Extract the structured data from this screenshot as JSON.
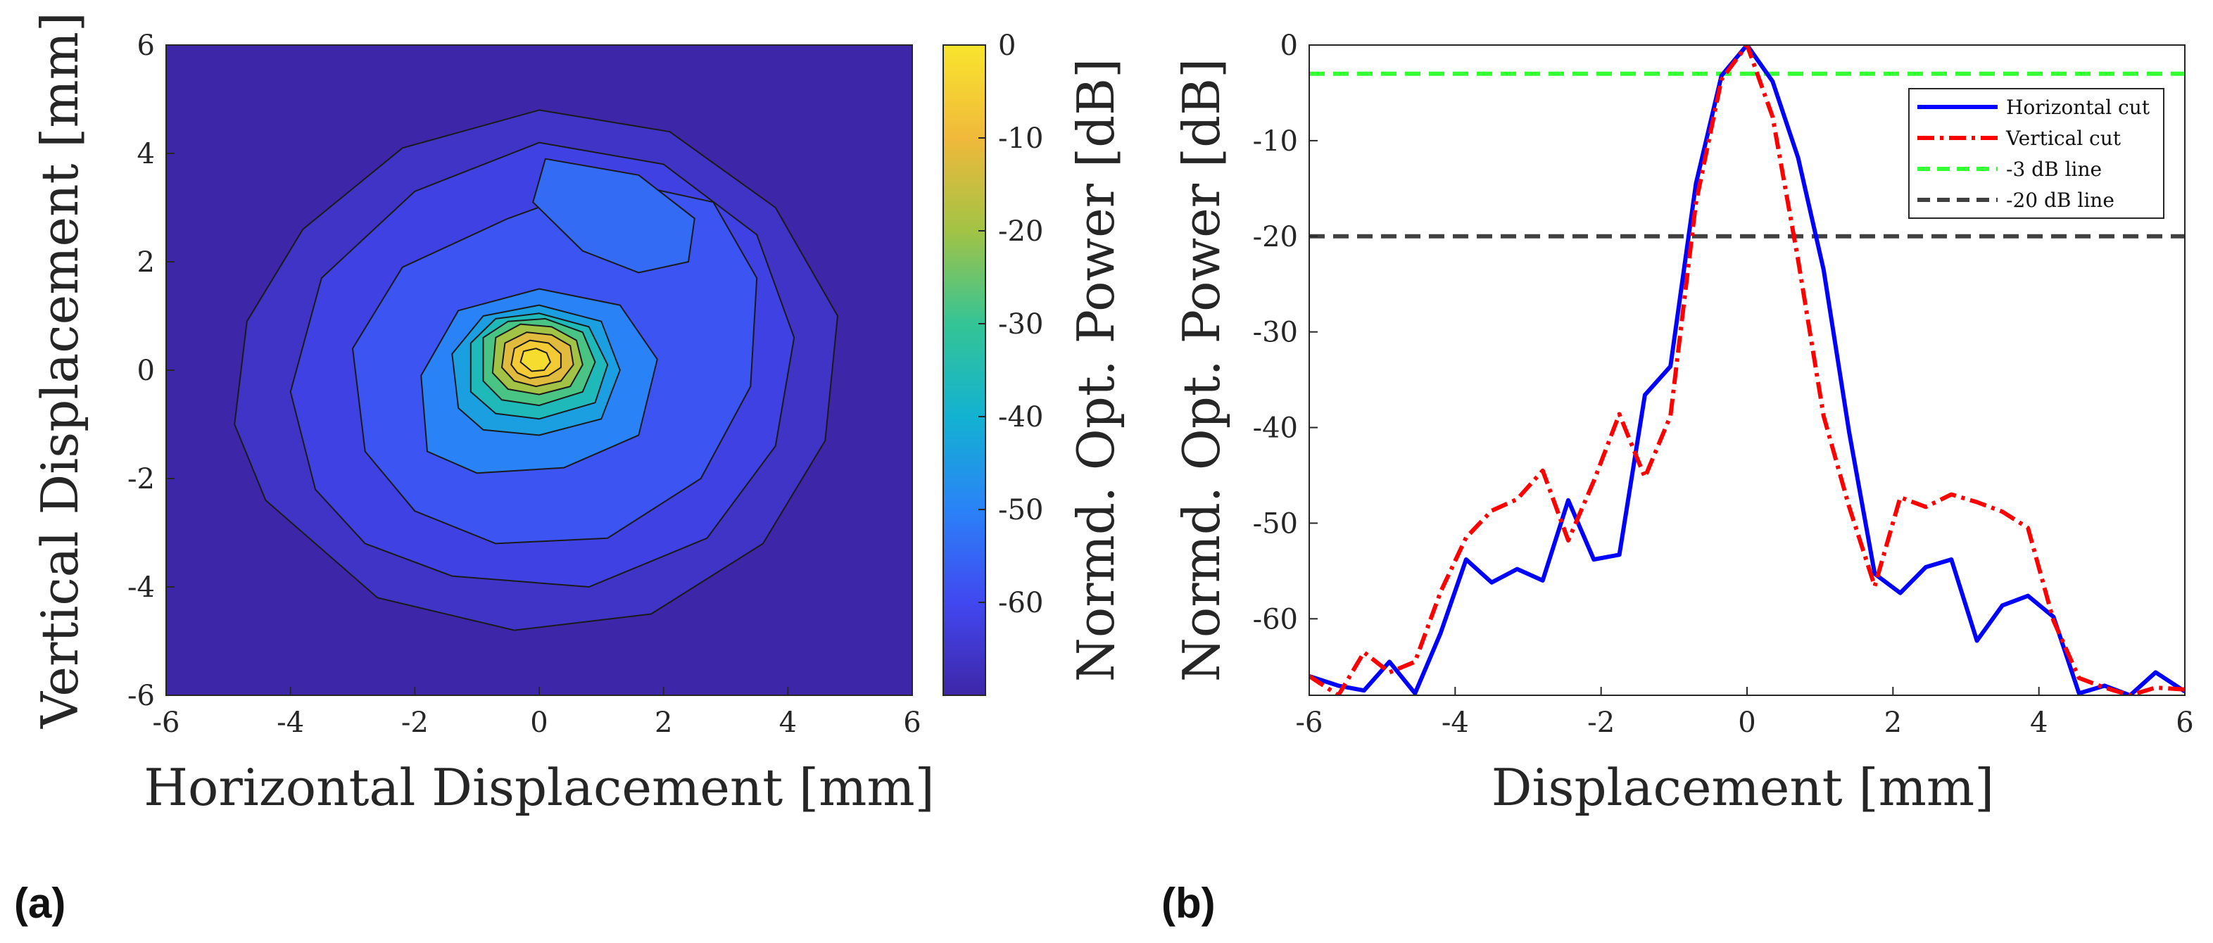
{
  "panel_labels": {
    "a": "(a)",
    "b": "(b)"
  },
  "chart_data": [
    {
      "type": "heatmap",
      "subtype": "contour",
      "panel": "(a)",
      "xlabel": "Horizontal Displacement [mm]",
      "ylabel": "Vertical Displacement [mm]",
      "xlim": [
        -6,
        6
      ],
      "ylim": [
        -6,
        6
      ],
      "xticks": [
        "-6",
        "-4",
        "-2",
        "0",
        "2",
        "4",
        "6"
      ],
      "yticks": [
        "6",
        "4",
        "2",
        "0",
        "-2",
        "-4",
        "-6"
      ],
      "colorbar": {
        "label": "Normd. Opt. Power [dB]",
        "range": [
          -70,
          0
        ],
        "ticks": [
          "0",
          "-10",
          "-20",
          "-30",
          "-40",
          "-50",
          "-60"
        ],
        "colormap": "parula",
        "colors": [
          "#3e26a8",
          "#4148f0",
          "#2a82f7",
          "#13b2d1",
          "#34c495",
          "#a2c345",
          "#f0b93b",
          "#f9e52d"
        ]
      },
      "peak": {
        "x": -0.1,
        "y": 0.15,
        "value": 0
      },
      "contours": [
        {
          "level": -66,
          "points": [
            [
              -4.4,
              -2.4
            ],
            [
              -4.9,
              -1
            ],
            [
              -4.7,
              0.9
            ],
            [
              -3.8,
              2.6
            ],
            [
              -2.2,
              4.1
            ],
            [
              0,
              4.8
            ],
            [
              2.1,
              4.4
            ],
            [
              3.8,
              3
            ],
            [
              4.8,
              1
            ],
            [
              4.6,
              -1.3
            ],
            [
              3.6,
              -3.2
            ],
            [
              1.8,
              -4.5
            ],
            [
              -0.4,
              -4.8
            ],
            [
              -2.6,
              -4.2
            ]
          ]
        },
        {
          "level": -62,
          "points": [
            [
              -3.6,
              -2.2
            ],
            [
              -4,
              -0.4
            ],
            [
              -3.5,
              1.7
            ],
            [
              -2,
              3.3
            ],
            [
              0,
              4.2
            ],
            [
              2,
              3.8
            ],
            [
              3.5,
              2.5
            ],
            [
              4.1,
              0.6
            ],
            [
              3.8,
              -1.4
            ],
            [
              2.7,
              -3.1
            ],
            [
              0.8,
              -4
            ],
            [
              -1.4,
              -3.8
            ],
            [
              -2.8,
              -3.2
            ]
          ]
        },
        {
          "level": -58,
          "points": [
            [
              -2.8,
              -1.5
            ],
            [
              -3,
              0.4
            ],
            [
              -2.2,
              1.9
            ],
            [
              -0.5,
              2.8
            ],
            [
              1.2,
              3.5
            ],
            [
              2.8,
              3.1
            ],
            [
              3.5,
              1.7
            ],
            [
              3.4,
              -0.3
            ],
            [
              2.6,
              -2
            ],
            [
              1.1,
              -3.1
            ],
            [
              -0.7,
              -3.2
            ],
            [
              -2,
              -2.6
            ]
          ]
        },
        {
          "level": -54,
          "points": [
            [
              0.1,
              3.9
            ],
            [
              1.6,
              3.6
            ],
            [
              2.5,
              2.8
            ],
            [
              2.4,
              2
            ],
            [
              1.6,
              1.8
            ],
            [
              0.7,
              2.2
            ],
            [
              -0.1,
              3.1
            ]
          ]
        },
        {
          "level": -50,
          "points": [
            [
              -1.8,
              -1.5
            ],
            [
              -1.9,
              -0.1
            ],
            [
              -1.3,
              1.1
            ],
            [
              0,
              1.5
            ],
            [
              1.3,
              1.2
            ],
            [
              1.9,
              0.2
            ],
            [
              1.6,
              -1.2
            ],
            [
              0.4,
              -1.8
            ],
            [
              -1,
              -1.9
            ]
          ]
        },
        {
          "level": -44,
          "points": [
            [
              -1.3,
              -0.7
            ],
            [
              -1.4,
              0.3
            ],
            [
              -0.9,
              1
            ],
            [
              0,
              1.2
            ],
            [
              1,
              0.9
            ],
            [
              1.3,
              0
            ],
            [
              1,
              -0.9
            ],
            [
              0,
              -1.2
            ],
            [
              -0.9,
              -1.1
            ]
          ]
        },
        {
          "level": -36,
          "points": [
            [
              -1.1,
              -0.4
            ],
            [
              -1.1,
              0.5
            ],
            [
              -0.7,
              0.95
            ],
            [
              0,
              1.05
            ],
            [
              0.8,
              0.8
            ],
            [
              1.1,
              0.1
            ],
            [
              0.9,
              -0.6
            ],
            [
              0,
              -0.9
            ],
            [
              -0.7,
              -0.8
            ]
          ]
        },
        {
          "level": -28,
          "points": [
            [
              -0.9,
              -0.2
            ],
            [
              -0.9,
              0.6
            ],
            [
              -0.5,
              0.9
            ],
            [
              0.1,
              0.95
            ],
            [
              0.7,
              0.7
            ],
            [
              0.9,
              0.15
            ],
            [
              0.7,
              -0.4
            ],
            [
              0,
              -0.65
            ],
            [
              -0.6,
              -0.55
            ]
          ]
        },
        {
          "level": -20,
          "points": [
            [
              -0.75,
              -0.05
            ],
            [
              -0.7,
              0.6
            ],
            [
              -0.3,
              0.85
            ],
            [
              0.2,
              0.8
            ],
            [
              0.6,
              0.55
            ],
            [
              0.7,
              0.1
            ],
            [
              0.5,
              -0.3
            ],
            [
              0,
              -0.45
            ],
            [
              -0.5,
              -0.35
            ]
          ]
        },
        {
          "level": -12,
          "points": [
            [
              -0.6,
              0.05
            ],
            [
              -0.55,
              0.5
            ],
            [
              -0.2,
              0.7
            ],
            [
              0.2,
              0.65
            ],
            [
              0.5,
              0.45
            ],
            [
              0.55,
              0.1
            ],
            [
              0.35,
              -0.2
            ],
            [
              -0.05,
              -0.3
            ],
            [
              -0.4,
              -0.2
            ]
          ]
        },
        {
          "level": -6,
          "points": [
            [
              -0.45,
              0.1
            ],
            [
              -0.4,
              0.4
            ],
            [
              -0.15,
              0.55
            ],
            [
              0.15,
              0.5
            ],
            [
              0.35,
              0.3
            ],
            [
              0.35,
              0.05
            ],
            [
              0.15,
              -0.1
            ],
            [
              -0.15,
              -0.15
            ],
            [
              -0.35,
              -0.05
            ]
          ]
        },
        {
          "level": -2,
          "points": [
            [
              -0.3,
              0.15
            ],
            [
              -0.25,
              0.35
            ],
            [
              -0.05,
              0.4
            ],
            [
              0.12,
              0.32
            ],
            [
              0.18,
              0.15
            ],
            [
              0.08,
              0
            ],
            [
              -0.12,
              -0.02
            ]
          ]
        }
      ]
    },
    {
      "type": "line",
      "panel": "(b)",
      "xlabel": "Displacement [mm]",
      "ylabel": "Normd. Opt. Power [dB]",
      "xlim": [
        -6,
        6
      ],
      "ylim": [
        -68,
        0
      ],
      "xticks": [
        "-6",
        "-4",
        "-2",
        "0",
        "2",
        "4",
        "6"
      ],
      "yticks": [
        "0",
        "-10",
        "-20",
        "-30",
        "-40",
        "-50",
        "-60"
      ],
      "legend_position": "top-right",
      "series": [
        {
          "name": "Horizontal cut",
          "color": "#0000ff",
          "style": "solid",
          "x": [
            -6,
            -5.6,
            -5.25,
            -4.9,
            -4.55,
            -4.2,
            -3.85,
            -3.5,
            -3.15,
            -2.8,
            -2.45,
            -2.1,
            -1.75,
            -1.4,
            -1.05,
            -0.7,
            -0.35,
            0,
            0.35,
            0.7,
            1.05,
            1.4,
            1.75,
            2.1,
            2.45,
            2.8,
            3.15,
            3.5,
            3.85,
            4.2,
            4.55,
            4.9,
            5.25,
            5.6,
            6
          ],
          "y": [
            -66,
            -67,
            -67.5,
            -64.5,
            -67.8,
            -61.5,
            -53.8,
            -56.2,
            -54.8,
            -56,
            -47.6,
            -53.8,
            -53.3,
            -36.6,
            -33.6,
            -14.5,
            -3.2,
            0,
            -3.8,
            -11.8,
            -23.5,
            -40.5,
            -55.3,
            -57.3,
            -54.6,
            -53.8,
            -62.3,
            -58.6,
            -57.6,
            -59.8,
            -67.8,
            -67,
            -68,
            -65.6,
            -67.6
          ]
        },
        {
          "name": "Vertical cut",
          "color": "#ff0000",
          "style": "dashdot",
          "x": [
            -6,
            -5.6,
            -5.25,
            -4.9,
            -4.55,
            -4.2,
            -3.85,
            -3.5,
            -3.15,
            -2.8,
            -2.45,
            -2.1,
            -1.75,
            -1.4,
            -1.05,
            -0.7,
            -0.35,
            0,
            0.35,
            0.7,
            1.05,
            1.4,
            1.75,
            2.1,
            2.45,
            2.8,
            3.15,
            3.5,
            3.85,
            4.2,
            4.55,
            4.9,
            5.25,
            5.6,
            6
          ],
          "y": [
            -66,
            -68,
            -63.5,
            -65.6,
            -64.5,
            -57.2,
            -51.5,
            -48.7,
            -47.5,
            -44.5,
            -51.8,
            -45.6,
            -38.6,
            -45.2,
            -38.8,
            -16.5,
            -3.6,
            0,
            -7.5,
            -22.5,
            -38.8,
            -48.3,
            -56.6,
            -47.3,
            -48.3,
            -47,
            -47.8,
            -48.8,
            -50.5,
            -60.2,
            -66.2,
            -67.2,
            -68,
            -67.2,
            -67.4
          ]
        },
        {
          "name": "-3 dB line",
          "color": "#33ff33",
          "style": "dashed",
          "x": [
            -6,
            6
          ],
          "y": [
            -3,
            -3
          ]
        },
        {
          "name": "-20 dB line",
          "color": "#404040",
          "style": "dashed",
          "x": [
            -6,
            6
          ],
          "y": [
            -20,
            -20
          ]
        }
      ]
    }
  ]
}
